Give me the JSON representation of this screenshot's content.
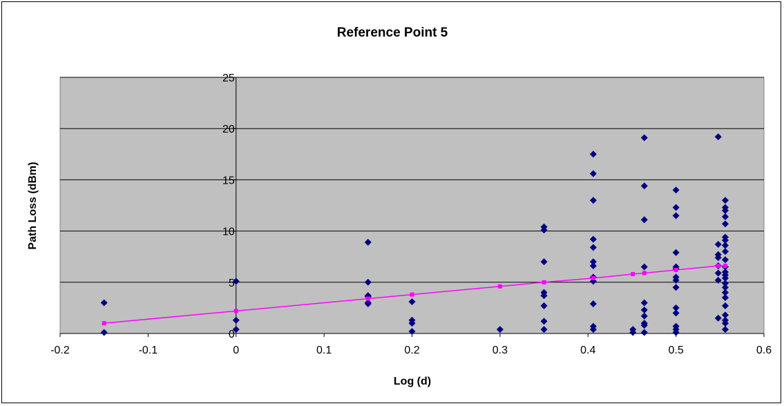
{
  "chart_data": {
    "type": "scatter",
    "title": "Reference Point 5",
    "xlabel": "Log (d)",
    "ylabel": "Path Loss (dBm)",
    "xlim": [
      -0.2,
      0.6
    ],
    "ylim": [
      0,
      25
    ],
    "xticks": [
      -0.2,
      -0.1,
      0,
      0.1,
      0.2,
      0.3,
      0.4,
      0.5,
      0.6
    ],
    "xtick_labels": [
      "-0.2",
      "-0.1",
      "0",
      "0.1",
      "0.2",
      "0.3",
      "0.4",
      "0.5",
      "0.6"
    ],
    "yticks": [
      0,
      5,
      10,
      15,
      20,
      25
    ],
    "ytick_labels": [
      "0",
      "5",
      "10",
      "15",
      "20",
      "25"
    ],
    "grid": "horizontal",
    "plot_background": "#c0c0c0",
    "series": [
      {
        "marker": "diamond",
        "color": "#000080",
        "points": [
          [
            -0.15,
            3.0
          ],
          [
            -0.15,
            0.1
          ],
          [
            0,
            5.1
          ],
          [
            0,
            1.3
          ],
          [
            0,
            0.4
          ],
          [
            0.15,
            8.9
          ],
          [
            0.15,
            5.0
          ],
          [
            0.15,
            3.7
          ],
          [
            0.15,
            3.6
          ],
          [
            0.15,
            3.0
          ],
          [
            0.15,
            2.9
          ],
          [
            0.2,
            3.1
          ],
          [
            0.2,
            1.3
          ],
          [
            0.2,
            1.0
          ],
          [
            0.2,
            0.2
          ],
          [
            0.3,
            0.4
          ],
          [
            0.35,
            10.4
          ],
          [
            0.35,
            10.1
          ],
          [
            0.35,
            7.0
          ],
          [
            0.35,
            4.0
          ],
          [
            0.35,
            3.7
          ],
          [
            0.35,
            2.7
          ],
          [
            0.35,
            1.2
          ],
          [
            0.35,
            0.4
          ],
          [
            0.406,
            17.5
          ],
          [
            0.406,
            15.6
          ],
          [
            0.406,
            13.0
          ],
          [
            0.406,
            9.2
          ],
          [
            0.406,
            8.4
          ],
          [
            0.406,
            7.0
          ],
          [
            0.406,
            6.6
          ],
          [
            0.406,
            5.5
          ],
          [
            0.406,
            5.1
          ],
          [
            0.406,
            2.9
          ],
          [
            0.406,
            0.7
          ],
          [
            0.406,
            0.4
          ],
          [
            0.451,
            0.4
          ],
          [
            0.451,
            0.1
          ],
          [
            0.464,
            19.1
          ],
          [
            0.464,
            14.4
          ],
          [
            0.464,
            11.1
          ],
          [
            0.464,
            6.5
          ],
          [
            0.464,
            3.0
          ],
          [
            0.464,
            2.3
          ],
          [
            0.464,
            1.7
          ],
          [
            0.464,
            1.0
          ],
          [
            0.464,
            0.8
          ],
          [
            0.464,
            0.1
          ],
          [
            0.5,
            14.0
          ],
          [
            0.5,
            12.3
          ],
          [
            0.5,
            11.5
          ],
          [
            0.5,
            7.9
          ],
          [
            0.5,
            6.5
          ],
          [
            0.5,
            6.3
          ],
          [
            0.5,
            5.5
          ],
          [
            0.5,
            5.2
          ],
          [
            0.5,
            4.5
          ],
          [
            0.5,
            2.5
          ],
          [
            0.5,
            2.0
          ],
          [
            0.5,
            0.7
          ],
          [
            0.5,
            0.4
          ],
          [
            0.5,
            0.1
          ],
          [
            0.548,
            19.2
          ],
          [
            0.548,
            8.7
          ],
          [
            0.548,
            7.7
          ],
          [
            0.548,
            7.4
          ],
          [
            0.548,
            6.6
          ],
          [
            0.548,
            5.9
          ],
          [
            0.548,
            5.2
          ],
          [
            0.548,
            1.5
          ],
          [
            0.556,
            13.0
          ],
          [
            0.556,
            12.3
          ],
          [
            0.556,
            12.0
          ],
          [
            0.556,
            11.4
          ],
          [
            0.556,
            10.7
          ],
          [
            0.556,
            9.4
          ],
          [
            0.556,
            9.1
          ],
          [
            0.556,
            8.6
          ],
          [
            0.556,
            8.0
          ],
          [
            0.556,
            7.2
          ],
          [
            0.556,
            6.5
          ],
          [
            0.556,
            6.0
          ],
          [
            0.556,
            5.7
          ],
          [
            0.556,
            5.4
          ],
          [
            0.556,
            4.9
          ],
          [
            0.556,
            4.5
          ],
          [
            0.556,
            4.0
          ],
          [
            0.556,
            3.5
          ],
          [
            0.556,
            2.7
          ],
          [
            0.556,
            1.8
          ],
          [
            0.556,
            1.3
          ],
          [
            0.556,
            1.0
          ],
          [
            0.556,
            0.4
          ]
        ]
      },
      {
        "marker": "square",
        "color": "#ff00ff",
        "line": true,
        "points": [
          [
            -0.15,
            1.0
          ],
          [
            0,
            2.2
          ],
          [
            0.15,
            3.4
          ],
          [
            0.2,
            3.8
          ],
          [
            0.3,
            4.6
          ],
          [
            0.35,
            5.0
          ],
          [
            0.406,
            5.4
          ],
          [
            0.451,
            5.8
          ],
          [
            0.464,
            5.9
          ],
          [
            0.5,
            6.2
          ],
          [
            0.548,
            6.6
          ],
          [
            0.556,
            6.6
          ]
        ]
      }
    ]
  }
}
